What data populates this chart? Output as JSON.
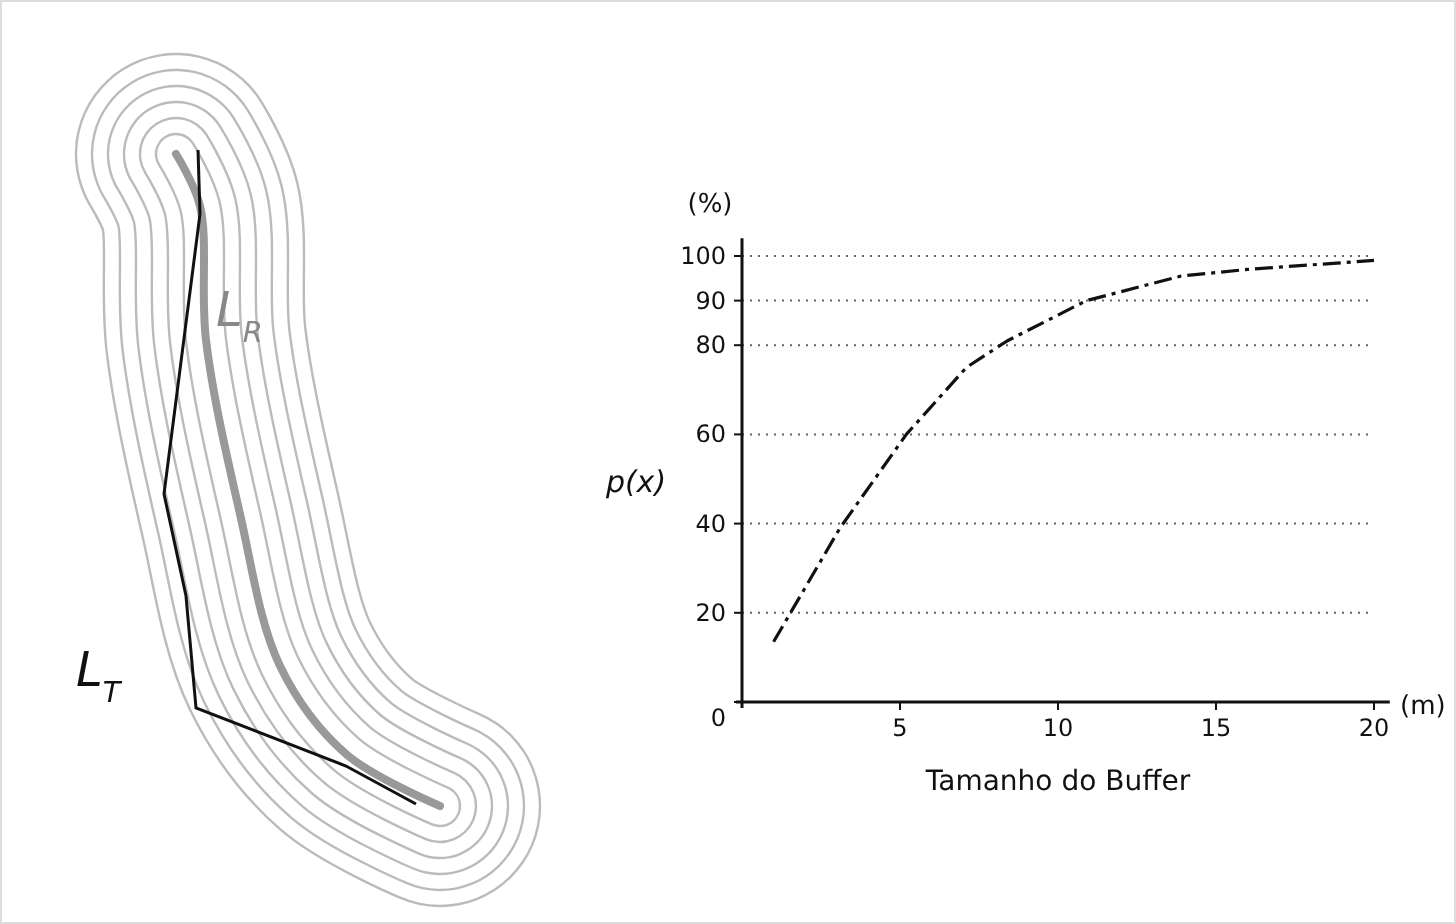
{
  "chart_data": {
    "type": "line",
    "xlabel": "Tamanho do Buffer",
    "ylabel": "p(x)",
    "x": [
      1,
      3.1,
      4.2,
      5.2,
      7.1,
      8.4,
      10.9,
      13.9,
      16,
      20
    ],
    "series": [
      {
        "color": "#111111",
        "values": [
          13.5,
          39,
          50,
          60,
          75,
          81,
          90,
          95.5,
          97,
          99
        ]
      }
    ],
    "xlim": [
      0,
      20.5
    ],
    "xticks": [
      5,
      10,
      15,
      20
    ],
    "ylim": [
      0,
      104
    ],
    "yticks": [
      0,
      20,
      40,
      60,
      80,
      90,
      100
    ],
    "grid": "y",
    "line_style": "dashed",
    "annotations": [
      "(%)",
      "(m)",
      "L$_{R}$",
      "L$_{T}$"
    ]
  }
}
